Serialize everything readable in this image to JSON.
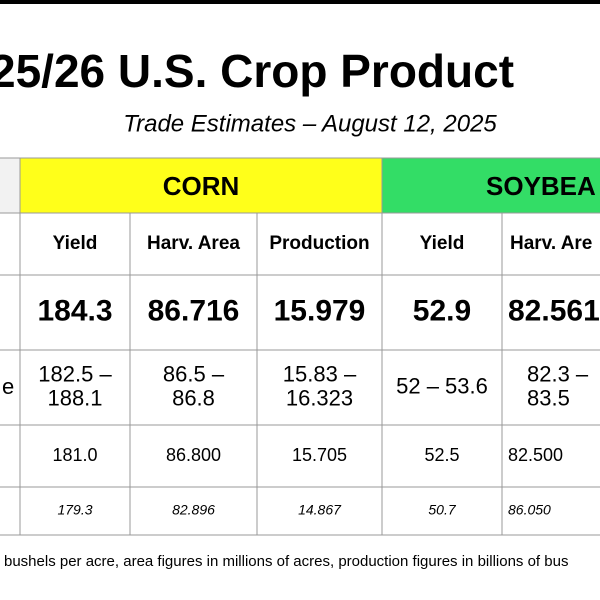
{
  "title": "25/26 U.S. Crop Product",
  "subtitle": "Trade Estimates – August 12, 2025",
  "table": {
    "groups": [
      "CORN",
      "SOYBEA"
    ],
    "columns": [
      "Yield",
      "Harv. Area",
      "Production",
      "Yield",
      "Harv. Are"
    ],
    "range_label": "e",
    "rows": [
      [
        "184.3",
        "86.716",
        "15.979",
        "52.9",
        "82.561"
      ],
      [
        [
          "182.5 –",
          "188.1"
        ],
        [
          "86.5 –",
          "86.8"
        ],
        [
          "15.83 –",
          "16.323"
        ],
        [
          "52 – 53.6"
        ],
        [
          "82.3 –",
          "83.5"
        ]
      ],
      [
        "181.0",
        "86.800",
        "15.705",
        "52.5",
        "82.500"
      ],
      [
        "179.3",
        "82.896",
        "14.867",
        "50.7",
        "86.050"
      ]
    ]
  },
  "footnote": "bushels per acre, area figures in millions of acres, production figures in billions of bus"
}
